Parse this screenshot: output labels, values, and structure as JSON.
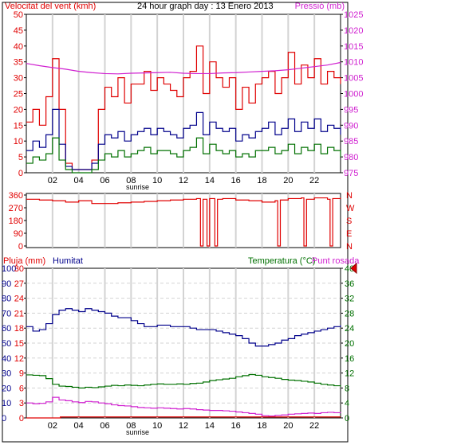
{
  "colors": {
    "red": "#e00000",
    "blue": "#00008b",
    "green": "#007000",
    "magenta": "#d020d0",
    "gridline": "#d3d3d3"
  },
  "chart_data": [
    {
      "type": "line",
      "title": "24 hour graph day : 13 Enero 2013",
      "ylabel_left": "Velocitat del vent (kmh)",
      "ylabel_right": "Pressió (mb)",
      "x_ticks": [
        "02",
        "04",
        "06",
        "08",
        "10",
        "12",
        "14",
        "16",
        "18",
        "20",
        "22"
      ],
      "x_label": "sunrise",
      "yleft_ticks": [
        "0",
        "5",
        "10",
        "15",
        "20",
        "25",
        "30",
        "35",
        "40",
        "45",
        "50"
      ],
      "yright_ticks": [
        "975",
        "980",
        "985",
        "990",
        "995",
        "1000",
        "1005",
        "1010",
        "1015",
        "1020",
        "1025"
      ],
      "ylim_left": [
        0,
        50
      ],
      "ylim_right": [
        975,
        1025
      ],
      "series": [
        {
          "name": "",
          "axis": "left",
          "color": "red",
          "x": [
            0,
            0.5,
            1,
            1.5,
            2,
            2.5,
            3,
            3.5,
            4,
            4.5,
            5,
            5.5,
            6,
            6.5,
            7,
            7.5,
            8,
            8.5,
            9,
            9.5,
            10,
            10.5,
            11,
            11.5,
            12,
            12.5,
            13,
            13.5,
            14,
            14.5,
            15,
            15.5,
            16,
            16.5,
            17,
            17.5,
            18,
            18.5,
            19,
            19.5,
            20,
            20.5,
            21,
            21.5,
            22,
            22.5,
            23,
            23.5,
            24
          ],
          "y": [
            16,
            20,
            15,
            24,
            36,
            20,
            3,
            1,
            1,
            1,
            4,
            20,
            27,
            24,
            30,
            22,
            28,
            28,
            32,
            26,
            30,
            28,
            26,
            24,
            30,
            32,
            40,
            25,
            35,
            30,
            27,
            30,
            20,
            27,
            22,
            28,
            30,
            32,
            25,
            30,
            38,
            28,
            34,
            30,
            36,
            28,
            32,
            30,
            28
          ]
        },
        {
          "name": "",
          "axis": "left",
          "color": "blue",
          "x": [
            0,
            0.5,
            1,
            1.5,
            2,
            2.5,
            3,
            3.5,
            4,
            4.5,
            5,
            5.5,
            6,
            6.5,
            7,
            7.5,
            8,
            8.5,
            9,
            9.5,
            10,
            10.5,
            11,
            11.5,
            12,
            12.5,
            13,
            13.5,
            14,
            14.5,
            15,
            15.5,
            16,
            16.5,
            17,
            17.5,
            18,
            18.5,
            19,
            19.5,
            20,
            20.5,
            21,
            21.5,
            22,
            22.5,
            23,
            23.5,
            24
          ],
          "y": [
            7,
            10,
            8,
            12,
            20,
            9,
            2,
            1,
            1,
            1,
            3,
            9,
            12,
            11,
            13,
            10,
            12,
            13,
            14,
            12,
            14,
            13,
            12,
            11,
            14,
            15,
            19,
            12,
            16,
            14,
            13,
            14,
            10,
            12,
            11,
            13,
            14,
            16,
            12,
            14,
            17,
            13,
            16,
            14,
            17,
            13,
            15,
            14,
            12
          ]
        },
        {
          "name": "",
          "axis": "left",
          "color": "green",
          "x": [
            0,
            0.5,
            1,
            1.5,
            2,
            2.5,
            3,
            3.5,
            4,
            4.5,
            5,
            5.5,
            6,
            6.5,
            7,
            7.5,
            8,
            8.5,
            9,
            9.5,
            10,
            10.5,
            11,
            11.5,
            12,
            12.5,
            13,
            13.5,
            14,
            14.5,
            15,
            15.5,
            16,
            16.5,
            17,
            17.5,
            18,
            18.5,
            19,
            19.5,
            20,
            20.5,
            21,
            21.5,
            22,
            22.5,
            23,
            23.5,
            24
          ],
          "y": [
            3,
            5,
            4,
            6,
            11,
            4,
            1,
            0,
            0,
            0,
            1,
            4,
            6,
            5,
            7,
            5,
            6,
            7,
            8,
            6,
            7,
            7,
            6,
            5,
            7,
            8,
            11,
            6,
            9,
            7,
            6,
            7,
            5,
            6,
            5,
            7,
            7,
            8,
            6,
            7,
            9,
            6,
            8,
            7,
            9,
            6,
            8,
            7,
            5
          ]
        },
        {
          "name": "",
          "axis": "right",
          "color": "magenta",
          "x": [
            0,
            1,
            2,
            3,
            4,
            5,
            6,
            7,
            8,
            9,
            10,
            11,
            12,
            13,
            14,
            15,
            16,
            17,
            18,
            19,
            20,
            21,
            22,
            23,
            24
          ],
          "y": [
            1009.5,
            1008.8,
            1008.2,
            1007.7,
            1007.0,
            1006.6,
            1006.3,
            1006.2,
            1006.4,
            1006.5,
            1006.6,
            1006.7,
            1006.4,
            1006.3,
            1006.3,
            1006.5,
            1006.6,
            1006.8,
            1007.0,
            1007.2,
            1007.5,
            1008.0,
            1008.5,
            1009.0,
            1009.8
          ]
        }
      ]
    },
    {
      "type": "line",
      "ylabel_left": "",
      "yleft_ticks": [
        "360",
        "270",
        "180",
        "90",
        "0"
      ],
      "yright_ticks": [
        "N",
        "W",
        "S",
        "E",
        "N"
      ],
      "ylim": [
        0,
        360
      ],
      "x_ticks": [
        "02",
        "04",
        "06",
        "08",
        "10",
        "12",
        "14",
        "16",
        "18",
        "20",
        "22"
      ],
      "series": [
        {
          "name": "",
          "color": "red",
          "x": [
            0,
            1,
            2,
            3,
            4,
            5,
            6,
            7,
            8,
            9,
            10,
            11,
            12,
            13,
            13.3,
            13.5,
            13.8,
            14,
            14.4,
            14.6,
            15,
            16,
            17,
            18,
            19,
            19.2,
            19.4,
            20,
            21,
            21.2,
            21.4,
            22,
            23,
            23.2,
            23.4,
            24
          ],
          "y": [
            330,
            325,
            320,
            310,
            320,
            300,
            300,
            305,
            310,
            315,
            320,
            325,
            330,
            335,
            0,
            330,
            0,
            335,
            0,
            330,
            335,
            325,
            320,
            310,
            320,
            0,
            325,
            335,
            340,
            0,
            330,
            340,
            330,
            0,
            335,
            340
          ]
        }
      ]
    },
    {
      "type": "line",
      "ylabel_left": "Pluja (mm)",
      "ylabel_hum": "Humitat",
      "ylabel_right": "Temperatura (°C)",
      "ylabel_right2": "Punt rosada",
      "x_ticks": [
        "02",
        "04",
        "06",
        "08",
        "10",
        "12",
        "14",
        "16",
        "18",
        "20",
        "22"
      ],
      "x_label": "sunrise",
      "rain_ticks": [
        "0",
        "3",
        "6",
        "9",
        "12",
        "15",
        "18",
        "21",
        "24",
        "27",
        "30"
      ],
      "hum_ticks": [
        "0",
        "10",
        "20",
        "30",
        "40",
        "50",
        "60",
        "70",
        "80",
        "90",
        "100"
      ],
      "temp_ticks": [
        "0",
        "4",
        "8",
        "12",
        "16",
        "20",
        "24",
        "28",
        "32",
        "36",
        "40"
      ],
      "ylim_temp": [
        0,
        40
      ],
      "ylim_hum": [
        0,
        100
      ],
      "ylim_rain": [
        0,
        30
      ],
      "current_temp_marker": 40,
      "series": [
        {
          "name": "",
          "axis": "hum",
          "color": "blue",
          "x": [
            0,
            0.5,
            1,
            1.5,
            2,
            2.5,
            3,
            3.5,
            4,
            4.5,
            5,
            5.5,
            6,
            6.5,
            7,
            7.5,
            8,
            8.5,
            9,
            9.5,
            10,
            10.5,
            11,
            11.5,
            12,
            12.5,
            13,
            13.5,
            14,
            14.5,
            15,
            15.5,
            16,
            16.5,
            17,
            17.5,
            18,
            18.5,
            19,
            19.5,
            20,
            20.5,
            21,
            21.5,
            22,
            22.5,
            23,
            23.5,
            24
          ],
          "y": [
            61,
            58,
            59,
            63,
            69,
            72,
            73,
            72,
            71,
            73,
            72,
            71,
            70,
            68,
            67,
            67,
            65,
            63,
            61,
            61,
            62,
            62,
            61,
            61,
            61,
            60,
            59,
            59,
            59,
            58,
            57,
            56,
            55,
            53,
            50,
            48,
            48,
            49,
            50,
            52,
            53,
            55,
            56,
            57,
            58,
            59,
            60,
            61,
            62
          ]
        },
        {
          "name": "",
          "axis": "temp",
          "color": "green",
          "x": [
            0,
            0.5,
            1,
            1.5,
            2,
            2.5,
            3,
            3.5,
            4,
            4.5,
            5,
            5.5,
            6,
            6.5,
            7,
            7.5,
            8,
            8.5,
            9,
            9.5,
            10,
            10.5,
            11,
            11.5,
            12,
            12.5,
            13,
            13.5,
            14,
            14.5,
            15,
            15.5,
            16,
            16.5,
            17,
            17.5,
            18,
            18.5,
            19,
            19.5,
            20,
            20.5,
            21,
            21.5,
            22,
            22.5,
            23,
            23.5,
            24
          ],
          "y": [
            11.5,
            11.4,
            11.3,
            10.5,
            9.0,
            8.5,
            8.4,
            8.2,
            8.0,
            8.2,
            8.1,
            8.3,
            8.5,
            8.7,
            8.6,
            8.8,
            8.7,
            8.6,
            8.8,
            9.0,
            9.1,
            9.0,
            9.0,
            9.1,
            9.0,
            9.2,
            9.3,
            9.6,
            10.0,
            10.2,
            10.4,
            10.6,
            11.0,
            11.3,
            11.6,
            11.4,
            11.0,
            10.8,
            10.6,
            10.3,
            10.1,
            10.0,
            9.8,
            9.6,
            9.3,
            9.0,
            8.8,
            8.6,
            8.4
          ]
        },
        {
          "name": "",
          "axis": "temp",
          "color": "magenta",
          "x": [
            0,
            0.5,
            1,
            1.5,
            2,
            2.5,
            3,
            3.5,
            4,
            4.5,
            5,
            5.5,
            6,
            6.5,
            7,
            7.5,
            8,
            8.5,
            9,
            9.5,
            10,
            10.5,
            11,
            11.5,
            12,
            12.5,
            13,
            13.5,
            14,
            14.5,
            15,
            15.5,
            16,
            16.5,
            17,
            17.5,
            18,
            18.5,
            19,
            19.5,
            20,
            20.5,
            21,
            21.5,
            22,
            22.5,
            23,
            23.5,
            24
          ],
          "y": [
            4.0,
            3.8,
            3.9,
            4.3,
            5.5,
            4.8,
            4.6,
            4.3,
            4.1,
            4.4,
            4.3,
            4.0,
            3.8,
            3.5,
            3.3,
            3.2,
            3.0,
            2.8,
            2.7,
            2.6,
            2.7,
            2.6,
            2.5,
            2.4,
            2.5,
            2.4,
            2.2,
            2.1,
            2.0,
            2.0,
            1.9,
            1.8,
            1.6,
            1.4,
            1.2,
            1.0,
            0.6,
            0.5,
            0.7,
            0.8,
            1.0,
            1.1,
            1.2,
            1.3,
            1.2,
            1.4,
            1.5,
            1.4,
            1.3
          ]
        },
        {
          "name": "",
          "axis": "rain",
          "color": "red",
          "x": [
            0,
            2.5,
            2.6,
            24
          ],
          "y": [
            0,
            0,
            0.2,
            0.2
          ]
        }
      ]
    }
  ]
}
